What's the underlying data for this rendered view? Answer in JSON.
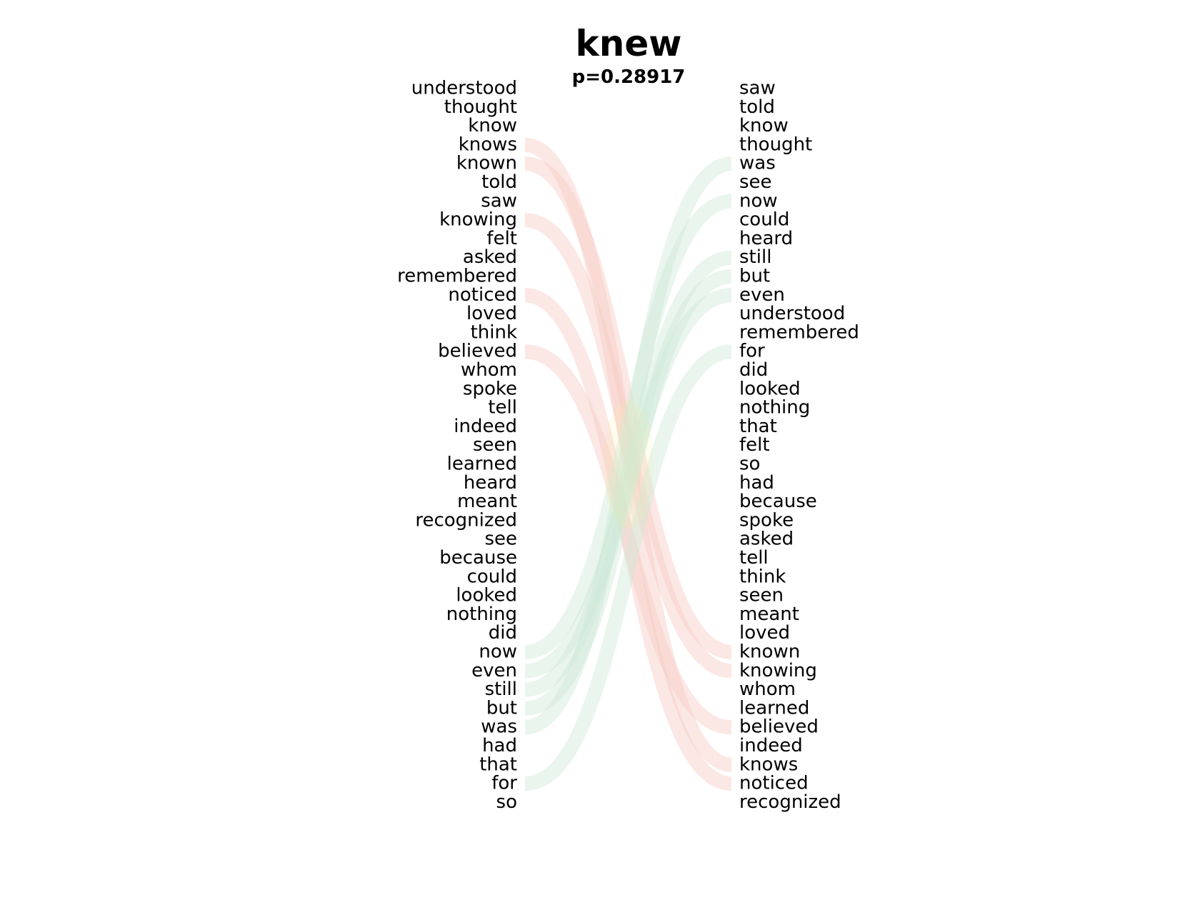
{
  "chart_data": {
    "type": "bump",
    "title": "knew",
    "subtitle": "p=0.28917",
    "left_words": [
      "understood",
      "thought",
      "know",
      "knows",
      "known",
      "told",
      "saw",
      "knowing",
      "felt",
      "asked",
      "remembered",
      "noticed",
      "loved",
      "think",
      "believed",
      "whom",
      "spoke",
      "tell",
      "indeed",
      "seen",
      "learned",
      "heard",
      "meant",
      "recognized",
      "see",
      "because",
      "could",
      "looked",
      "nothing",
      "did",
      "now",
      "even",
      "still",
      "but",
      "was",
      "had",
      "that",
      "for",
      "so"
    ],
    "right_words": [
      "saw",
      "told",
      "know",
      "thought",
      "was",
      "see",
      "now",
      "could",
      "heard",
      "still",
      "but",
      "even",
      "understood",
      "remembered",
      "for",
      "did",
      "looked",
      "nothing",
      "that",
      "felt",
      "so",
      "had",
      "because",
      "spoke",
      "asked",
      "tell",
      "think",
      "seen",
      "meant",
      "loved",
      "known",
      "knowing",
      "whom",
      "learned",
      "believed",
      "indeed",
      "knows",
      "noticed",
      "recognized"
    ],
    "links_left_to_right": [
      {
        "word": "knows",
        "from": 4,
        "to": 37
      },
      {
        "word": "known",
        "from": 5,
        "to": 31
      },
      {
        "word": "knowing",
        "from": 8,
        "to": 32
      },
      {
        "word": "noticed",
        "from": 12,
        "to": 38
      },
      {
        "word": "believed",
        "from": 15,
        "to": 35
      }
    ],
    "links_right_to_left": [
      {
        "word": "was",
        "from": 5,
        "to": 35
      },
      {
        "word": "now",
        "from": 7,
        "to": 31
      },
      {
        "word": "still",
        "from": 10,
        "to": 33
      },
      {
        "word": "but",
        "from": 11,
        "to": 34
      },
      {
        "word": "even",
        "from": 12,
        "to": 32
      },
      {
        "word": "for",
        "from": 15,
        "to": 38
      }
    ],
    "colors": {
      "left_to_right_link": "#f7c9c4",
      "right_to_left_link": "#cfe8d6",
      "cross_tint": "#f4f0a8"
    }
  }
}
